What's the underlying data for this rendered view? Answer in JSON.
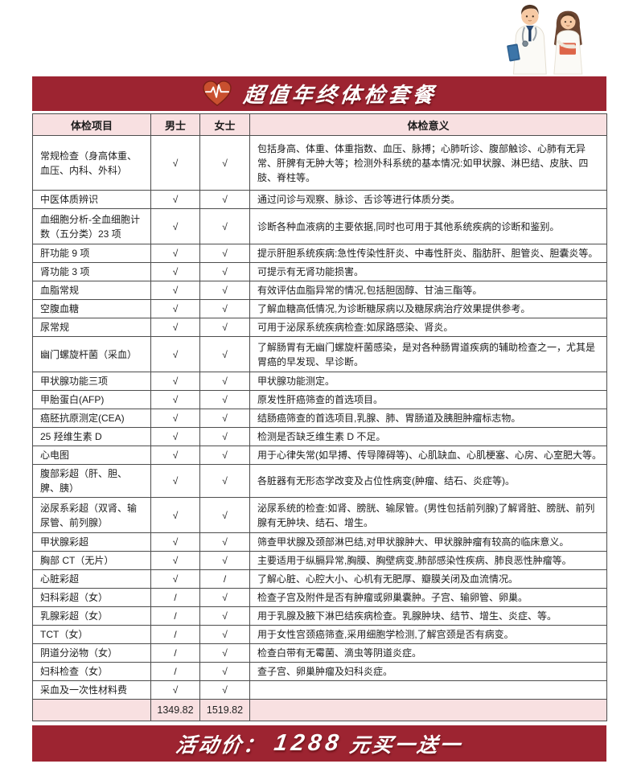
{
  "banner": {
    "title": "超值年终体检套餐",
    "icon": "heart-ecg-icon"
  },
  "colors": {
    "banner_red": "#9d2431",
    "header_pink": "#f8e0e1",
    "heart_orange": "#c9502f",
    "check_mark_color": "#333333"
  },
  "table": {
    "headers": [
      "体检项目",
      "男士",
      "女士",
      "体检意义"
    ],
    "check_symbol": "√",
    "not_included_symbol": "/",
    "rows": [
      {
        "item": "常规检查（身高体重、血压、内科、外科）",
        "male": "√",
        "female": "√",
        "meaning": "包括身高、体重、体重指数、血压、脉搏；心肺听诊、腹部触诊、心肺有无异常、肝脾有无肿大等；检测外科系统的基本情况:如甲状腺、淋巴结、皮肤、四肢、脊柱等。"
      },
      {
        "item": "中医体质辨识",
        "male": "√",
        "female": "√",
        "meaning": "通过问诊与观察、脉诊、舌诊等进行体质分类。"
      },
      {
        "item": "血细胞分析-全血细胞计数（五分类）23 项",
        "male": "√",
        "female": "√",
        "meaning": "诊断各种血液病的主要依据,同时也可用于其他系统疾病的诊断和鉴别。"
      },
      {
        "item": "肝功能 9 项",
        "male": "√",
        "female": "√",
        "meaning": "提示肝胆系统疾病:急性传染性肝炎、中毒性肝炎、脂肪肝、胆管炎、胆囊炎等。"
      },
      {
        "item": "肾功能 3 项",
        "male": "√",
        "female": "√",
        "meaning": "可提示有无肾功能损害。"
      },
      {
        "item": "血脂常规",
        "male": "√",
        "female": "√",
        "meaning": "有效评估血脂异常的情况,包括胆固醇、甘油三酯等。"
      },
      {
        "item": "空腹血糖",
        "male": "√",
        "female": "√",
        "meaning": "了解血糖高低情况,为诊断糖尿病以及糖尿病治疗效果提供参考。"
      },
      {
        "item": "尿常规",
        "male": "√",
        "female": "√",
        "meaning": "可用于泌尿系统疾病检查:如尿路感染、肾炎。"
      },
      {
        "item": "幽门螺旋杆菌（采血）",
        "male": "√",
        "female": "√",
        "meaning": "了解肠胃有无幽门螺旋杆菌感染，是对各种肠胃道疾病的辅助检查之一，尤其是胃癌的早发现、早诊断。"
      },
      {
        "item": "甲状腺功能三项",
        "male": "√",
        "female": "√",
        "meaning": "甲状腺功能测定。"
      },
      {
        "item": "甲胎蛋白(AFP)",
        "male": "√",
        "female": "√",
        "meaning": "原发性肝癌筛查的首选项目。"
      },
      {
        "item": "癌胚抗原测定(CEA)",
        "male": "√",
        "female": "√",
        "meaning": "结肠癌筛查的首选项目,乳腺、肺、胃肠道及胰胆肿瘤标志物。"
      },
      {
        "item": "25 羟维生素 D",
        "male": "√",
        "female": "√",
        "meaning": "检测是否缺乏维生素 D 不足。"
      },
      {
        "item": "心电图",
        "male": "√",
        "female": "√",
        "meaning": "用于心律失常(如早搏、传导障碍等)、心肌缺血、心肌梗塞、心房、心室肥大等。"
      },
      {
        "item": "腹部彩超（肝、胆、脾、胰）",
        "male": "√",
        "female": "√",
        "meaning": "各脏器有无形态学改变及占位性病变(肿瘤、结石、炎症等)。"
      },
      {
        "item": "泌尿系彩超（双肾、输尿管、前列腺）",
        "male": "√",
        "female": "√",
        "meaning": "泌尿系统的检查:如肾、膀胱、输尿管。(男性包括前列腺)了解肾脏、膀胱、前列腺有无肿块、结石、增生。"
      },
      {
        "item": "甲状腺彩超",
        "male": "√",
        "female": "√",
        "meaning": "筛查甲状腺及颈部淋巴结,对甲状腺肿大、甲状腺肿瘤有较高的临床意义。"
      },
      {
        "item": "胸部 CT（无片）",
        "male": "√",
        "female": "√",
        "meaning": "主要适用于纵膈异常,胸膜、胸壁病变,肺部感染性疾病、肺良恶性肿瘤等。"
      },
      {
        "item": "心脏彩超",
        "male": "√",
        "female": "/",
        "meaning": "了解心脏、心腔大小、心机有无肥厚、瓣膜关闭及血流情况。"
      },
      {
        "item": "妇科彩超（女）",
        "male": "/",
        "female": "√",
        "meaning": "检查子宫及附件是否有肿瘤或卵巢囊肿。子宫、输卵管、卵巢。"
      },
      {
        "item": "乳腺彩超（女）",
        "male": "/",
        "female": "√",
        "meaning": "用于乳腺及腋下淋巴结疾病检查。乳腺肿块、结节、增生、炎症、等。"
      },
      {
        "item": "TCT（女）",
        "male": "/",
        "female": "√",
        "meaning": "用于女性宫颈癌筛查,采用细胞学检测,了解宫颈是否有病变。"
      },
      {
        "item": "阴道分泌物（女）",
        "male": "/",
        "female": "√",
        "meaning": "检查白带有无霉菌、滴虫等阴道炎症。"
      },
      {
        "item": "妇科检查（女）",
        "male": "/",
        "female": "√",
        "meaning": "查子宫、卵巢肿瘤及妇科炎症。"
      },
      {
        "item": "采血及一次性材料费",
        "male": "√",
        "female": "√",
        "meaning": ""
      }
    ],
    "totals": {
      "item": "",
      "male": "1349.82",
      "female": "1519.82",
      "meaning": ""
    }
  },
  "footer": {
    "prefix": "活动价：",
    "price": "1288",
    "suffix": "元买一送一"
  },
  "illustration": "doctors-illustration"
}
